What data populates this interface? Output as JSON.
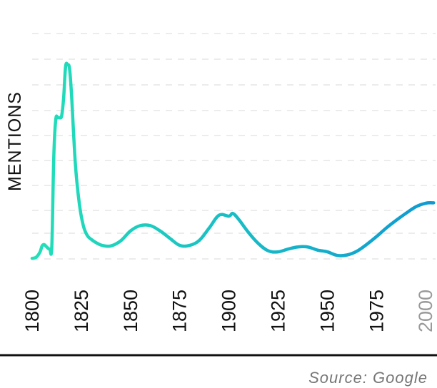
{
  "chart_data": {
    "type": "line",
    "title": "",
    "xlabel": "",
    "ylabel": "MENTIONS",
    "source": "Source: Google",
    "grid": true,
    "legend": "none",
    "xlim": [
      1800,
      2005
    ],
    "ylim": [
      0,
      100
    ],
    "x_ticks": [
      "1800",
      "1825",
      "1850",
      "1875",
      "1900",
      "1925",
      "1950",
      "1975",
      "2000"
    ],
    "colors": {
      "line_start": "#22e0b8",
      "line_end": "#0f9ad2",
      "grid": "#e6e6e6",
      "axis": "#111111",
      "muted_tick": "#9a9a9a"
    },
    "series": [
      {
        "x": [
          1800,
          1802,
          1804,
          1805,
          1806,
          1807,
          1808,
          1809,
          1810,
          1811,
          1812,
          1813,
          1814,
          1815,
          1816,
          1817,
          1818,
          1819,
          1820,
          1822,
          1824,
          1826,
          1828,
          1830,
          1833,
          1836,
          1840,
          1845,
          1850,
          1855,
          1860,
          1865,
          1870,
          1875,
          1880,
          1885,
          1890,
          1895,
          1900,
          1902,
          1905,
          1910,
          1915,
          1920,
          1925,
          1930,
          1935,
          1940,
          1945,
          1950,
          1955,
          1960,
          1965,
          1970,
          1975,
          1980,
          1985,
          1990,
          1995,
          2000,
          2004
        ],
        "values": [
          0.3,
          0.8,
          3.5,
          6.5,
          7.3,
          6.5,
          5.5,
          5.0,
          6.5,
          52,
          71,
          72,
          72,
          73,
          82,
          98,
          99,
          97,
          84,
          48,
          28,
          17,
          12,
          10,
          8,
          6.8,
          6.6,
          9.2,
          14.3,
          17,
          17,
          14.3,
          10.5,
          6.9,
          6.9,
          9.5,
          15.8,
          22.3,
          21.8,
          23.2,
          20.1,
          13.4,
          7.8,
          4.1,
          3.6,
          5.0,
          6.1,
          6.1,
          4.5,
          3.6,
          1.8,
          2.0,
          3.9,
          7.4,
          11.4,
          15.8,
          19.7,
          23.3,
          26.6,
          28.4,
          28.6
        ]
      }
    ]
  }
}
